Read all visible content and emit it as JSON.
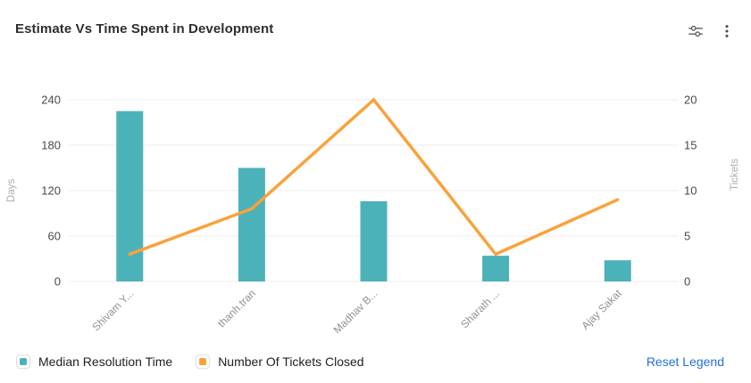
{
  "header": {
    "title": "Estimate Vs Time Spent in Development",
    "icons": [
      {
        "name": "sliders-icon"
      },
      {
        "name": "kebab-menu-icon"
      }
    ]
  },
  "chart_data": {
    "type": "bar",
    "subtype": "combo-bar-line",
    "title": "Estimate Vs Time Spent in Development",
    "categories": [
      "Shivam Y...",
      "thanh.tran",
      "Madhav B...",
      "Sharath ...",
      "Ajay Sakat"
    ],
    "series": [
      {
        "name": "Median Resolution Time",
        "type": "bar",
        "axis": "left",
        "color": "#4cb2ba",
        "values": [
          225,
          150,
          106,
          34,
          28
        ]
      },
      {
        "name": "Number Of Tickets Closed",
        "type": "line",
        "axis": "right",
        "color": "#f9a23b",
        "values": [
          3,
          8,
          20,
          3,
          9
        ]
      }
    ],
    "left_axis": {
      "label": "Days",
      "ticks": [
        0,
        60,
        120,
        180,
        240
      ],
      "min": 0,
      "max": 240
    },
    "right_axis": {
      "label": "Tickets",
      "ticks": [
        0,
        5,
        10,
        15,
        20
      ],
      "min": 0,
      "max": 20
    },
    "grid": true,
    "legend_position": "bottom",
    "colors": {
      "gridline": "#ececec",
      "tick_label": "#45494d",
      "category_label": "#8d9296",
      "axis_name": "#a8adb3"
    }
  },
  "legend": {
    "items": [
      {
        "label": "Median Resolution Time",
        "color": "#4cb2ba"
      },
      {
        "label": "Number Of Tickets Closed",
        "color": "#f9a23b"
      }
    ],
    "reset_label": "Reset Legend"
  }
}
